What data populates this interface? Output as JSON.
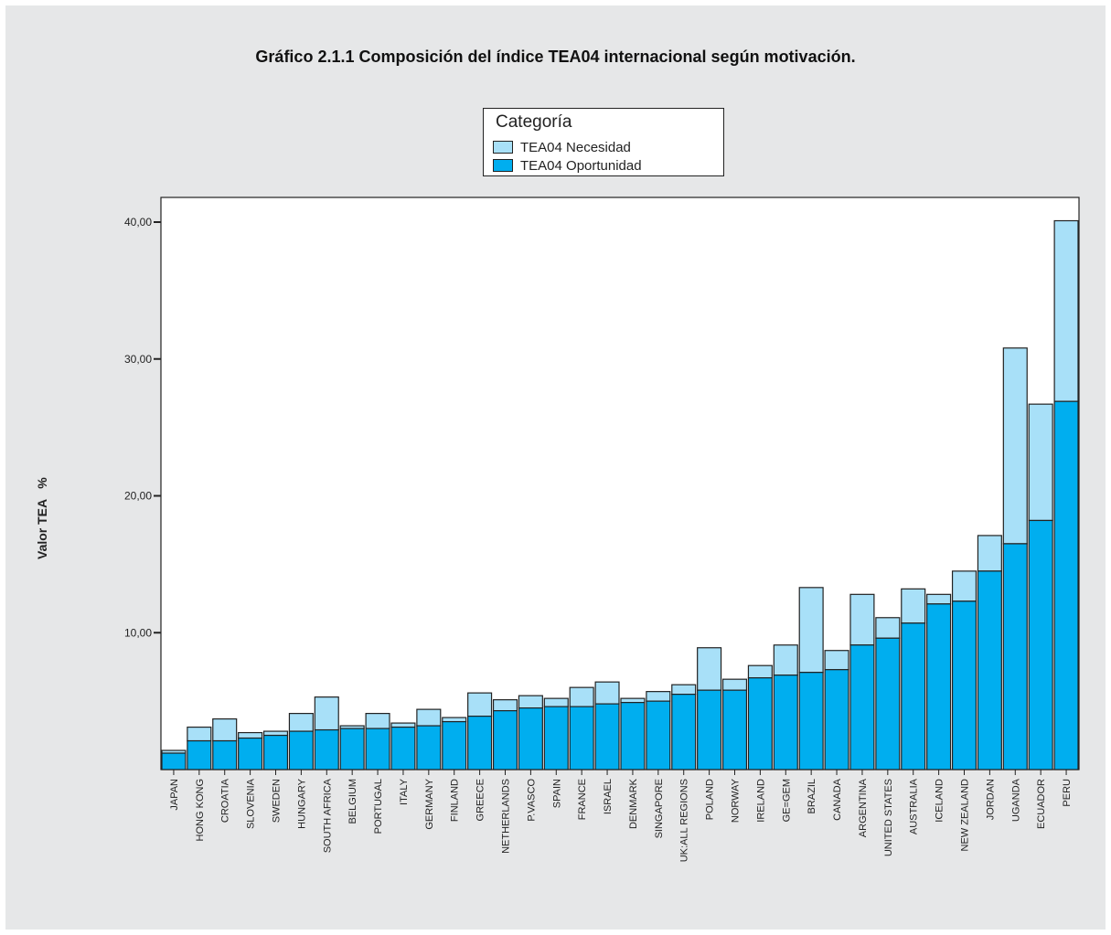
{
  "chart_data": {
    "type": "bar",
    "stacked": true,
    "title": "Gráfico 2.1.1 Composición del índice TEA04 internacional según motivación.",
    "ylabel": "Valor TEA   %",
    "xlabel": "",
    "ylim": [
      0,
      42
    ],
    "yticks": [
      10,
      20,
      30,
      40
    ],
    "ytick_labels": [
      "10,00",
      "20,00",
      "30,00",
      "40,00"
    ],
    "grid": false,
    "legend": {
      "title": "Categoría",
      "placement": "top-center",
      "entries": [
        "TEA04 Necesidad",
        "TEA04 Oportunidad"
      ]
    },
    "categories": [
      "JAPAN",
      "HONG KONG",
      "CROATIA",
      "SLOVENIA",
      "SWEDEN",
      "HUNGARY",
      "SOUTH AFRICA",
      "BELGIUM",
      "PORTUGAL",
      "ITALY",
      "GERMANY",
      "FINLAND",
      "GREECE",
      "NETHERLANDS",
      "P.VASCO",
      "SPAIN",
      "FRANCE",
      "ISRAEL",
      "DENMARK",
      "SINGAPORE",
      "UK:ALL REGIONS",
      "POLAND",
      "NORWAY",
      "IRELAND",
      "GE=GEM",
      "BRAZIL",
      "CANADA",
      "ARGENTINA",
      "UNITED STATES",
      "AUSTRALIA",
      "ICELAND",
      "NEW ZEALAND",
      "JORDAN",
      "UGANDA",
      "ECUADOR",
      "PERU"
    ],
    "series": [
      {
        "name": "TEA04 Oportunidad",
        "color": "#00aeef",
        "values": [
          1.2,
          2.1,
          2.1,
          2.3,
          2.5,
          2.8,
          2.9,
          3.0,
          3.0,
          3.1,
          3.2,
          3.5,
          3.9,
          4.3,
          4.5,
          4.6,
          4.6,
          4.8,
          4.9,
          5.0,
          5.5,
          5.8,
          5.8,
          6.7,
          6.9,
          7.1,
          7.3,
          9.1,
          9.6,
          10.7,
          12.1,
          12.3,
          14.5,
          16.5,
          18.2,
          26.9
        ]
      },
      {
        "name": "TEA04 Necesidad",
        "color": "#a8e0f8",
        "values": [
          0.2,
          1.0,
          1.6,
          0.4,
          0.3,
          1.3,
          2.4,
          0.2,
          1.1,
          0.3,
          1.2,
          0.3,
          1.7,
          0.8,
          0.9,
          0.6,
          1.4,
          1.6,
          0.3,
          0.7,
          0.7,
          3.1,
          0.8,
          0.9,
          2.2,
          6.2,
          1.4,
          3.7,
          1.5,
          2.5,
          0.7,
          2.2,
          2.6,
          14.3,
          8.5,
          13.2
        ]
      }
    ]
  },
  "colors": {
    "panel_background": "#e6e7e8",
    "plot_background": "#ffffff",
    "axis": "#222222"
  }
}
